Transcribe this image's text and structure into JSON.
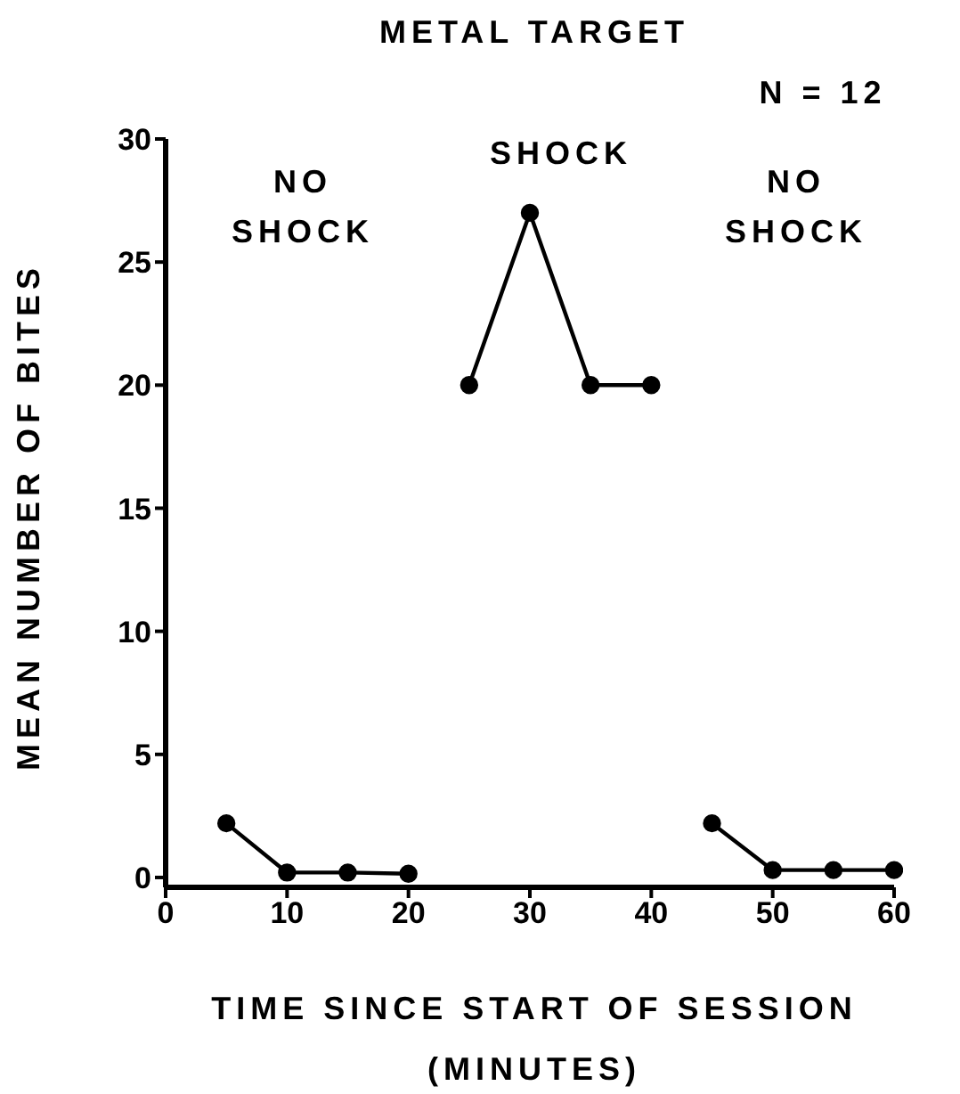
{
  "chart_data": {
    "type": "line",
    "title": "METAL TARGET",
    "xlabel": "TIME SINCE START OF SESSION (MINUTES)",
    "ylabel": "MEAN NUMBER OF BITES",
    "annotations": [
      "N = 12",
      "NO SHOCK",
      "SHOCK",
      "NO SHOCK"
    ],
    "series": [
      {
        "color": "#000000",
        "x": [
          5,
          10,
          15,
          20
        ],
        "values": [
          2.2,
          0.2,
          0.2,
          0.15
        ]
      },
      {
        "color": "#000000",
        "x": [
          25,
          30,
          35,
          40
        ],
        "values": [
          20,
          27,
          20,
          20
        ]
      },
      {
        "color": "#000000",
        "x": [
          45,
          50,
          55,
          60
        ],
        "values": [
          2.2,
          0.3,
          0.3,
          0.3
        ]
      }
    ],
    "xlim": [
      0,
      60
    ],
    "xticks": [
      0,
      10,
      20,
      30,
      40,
      50,
      60
    ],
    "ylim": [
      -0.4,
      30
    ],
    "yticks": [
      0,
      5,
      10,
      15,
      20,
      25,
      30
    ],
    "marker": "circle",
    "line_style": "solid"
  }
}
